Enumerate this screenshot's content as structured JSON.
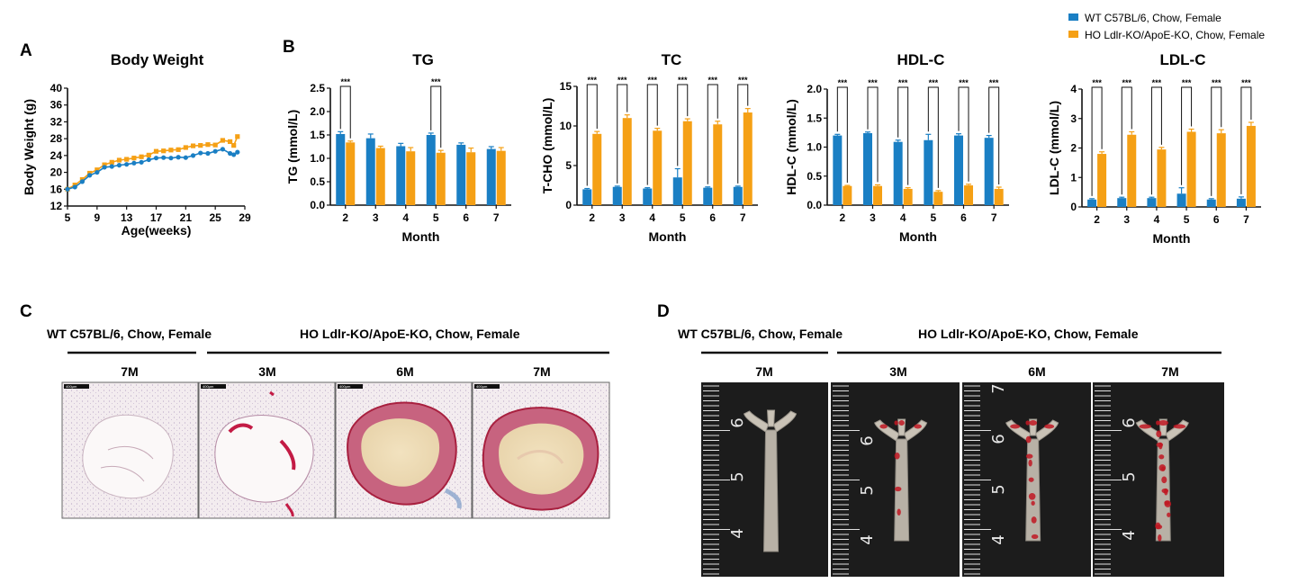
{
  "colors": {
    "wt": "#1a7fc4",
    "ho": "#f5a015"
  },
  "legend": {
    "wt": "WT C57BL/6, Chow, Female",
    "ho": "HO Ldlr-KO/ApoE-KO, Chow, Female"
  },
  "panels": {
    "a": "A",
    "b": "B",
    "c": "C",
    "d": "D"
  },
  "chart_data": [
    {
      "type": "line",
      "title": "Body Weight",
      "xlabel": "Age(weeks)",
      "ylabel": "Body Weight (g)",
      "xlim": [
        5,
        29
      ],
      "ylim": [
        12,
        40
      ],
      "xticks": [
        "5",
        "9",
        "13",
        "17",
        "21",
        "25",
        "29"
      ],
      "yticks": [
        "12",
        "16",
        "20",
        "24",
        "28",
        "32",
        "36",
        "40"
      ],
      "series": [
        {
          "name": "WT C57BL/6, Chow, Female",
          "x": [
            5,
            6,
            7,
            8,
            9,
            10,
            11,
            12,
            13,
            14,
            15,
            16,
            17,
            18,
            19,
            20,
            21,
            22,
            23,
            24,
            25,
            26,
            27,
            27.5,
            28
          ],
          "y": [
            16.0,
            16.5,
            17.8,
            19.3,
            20.0,
            21.2,
            21.4,
            21.7,
            21.9,
            22.2,
            22.4,
            23.0,
            23.4,
            23.5,
            23.4,
            23.6,
            23.5,
            24.0,
            24.6,
            24.5,
            25.0,
            25.5,
            24.5,
            24.2,
            24.8
          ]
        },
        {
          "name": "HO Ldlr-KO/ApoE-KO, Chow, Female",
          "x": [
            5,
            6,
            7,
            8,
            9,
            10,
            11,
            12,
            13,
            14,
            15,
            16,
            17,
            18,
            19,
            20,
            21,
            22,
            23,
            24,
            25,
            26,
            27,
            27.5,
            28
          ],
          "y": [
            16.0,
            17.0,
            18.3,
            19.8,
            20.6,
            21.8,
            22.4,
            22.9,
            23.1,
            23.4,
            23.7,
            24.1,
            25.0,
            25.1,
            25.3,
            25.4,
            25.9,
            26.3,
            26.4,
            26.6,
            26.5,
            27.6,
            27.3,
            26.4,
            28.5
          ]
        }
      ]
    },
    {
      "type": "bar",
      "title": "TG",
      "xlabel": "Month",
      "ylabel": "TG (mmol/L)",
      "categories": [
        "2",
        "3",
        "4",
        "5",
        "6",
        "7"
      ],
      "ylim": [
        0,
        2.5
      ],
      "yticks": [
        "0.0",
        "0.5",
        "1.0",
        "1.5",
        "2.0",
        "2.5"
      ],
      "series": [
        {
          "name": "WT C57BL/6, Chow, Female",
          "values": [
            1.52,
            1.43,
            1.26,
            1.5,
            1.29,
            1.2
          ],
          "errors": [
            0.05,
            0.09,
            0.06,
            0.04,
            0.04,
            0.05
          ]
        },
        {
          "name": "HO Ldlr-KO/ApoE-KO, Chow, Female",
          "values": [
            1.34,
            1.22,
            1.15,
            1.12,
            1.13,
            1.16
          ],
          "errors": [
            0.03,
            0.04,
            0.08,
            0.05,
            0.09,
            0.07
          ]
        }
      ],
      "significance": [
        "***",
        "",
        "",
        "***",
        "",
        ""
      ]
    },
    {
      "type": "bar",
      "title": "TC",
      "xlabel": "Month",
      "ylabel": "T-CHO (mmol/L)",
      "categories": [
        "2",
        "3",
        "4",
        "5",
        "6",
        "7"
      ],
      "ylim": [
        0,
        15
      ],
      "yticks": [
        "0",
        "5",
        "10",
        "15"
      ],
      "series": [
        {
          "name": "WT C57BL/6, Chow, Female",
          "values": [
            2.0,
            2.3,
            2.1,
            3.5,
            2.2,
            2.3
          ],
          "errors": [
            0.1,
            0.1,
            0.1,
            1.1,
            0.1,
            0.1
          ]
        },
        {
          "name": "HO Ldlr-KO/ApoE-KO, Chow, Female",
          "values": [
            9.0,
            11.0,
            9.4,
            10.6,
            10.2,
            11.7
          ],
          "errors": [
            0.3,
            0.4,
            0.3,
            0.3,
            0.4,
            0.5
          ]
        }
      ],
      "significance": [
        "***",
        "***",
        "***",
        "***",
        "***",
        "***"
      ]
    },
    {
      "type": "bar",
      "title": "HDL-C",
      "xlabel": "Month",
      "ylabel": "HDL-C (mmol/L)",
      "categories": [
        "2",
        "3",
        "4",
        "5",
        "6",
        "7"
      ],
      "ylim": [
        0,
        2.0
      ],
      "yticks": [
        "0.0",
        "0.5",
        "1.0",
        "1.5",
        "2.0"
      ],
      "series": [
        {
          "name": "WT C57BL/6, Chow, Female",
          "values": [
            1.2,
            1.24,
            1.09,
            1.12,
            1.2,
            1.16
          ],
          "errors": [
            0.02,
            0.02,
            0.03,
            0.1,
            0.03,
            0.04
          ]
        },
        {
          "name": "HO Ldlr-KO/ApoE-KO, Chow, Female",
          "values": [
            0.33,
            0.33,
            0.28,
            0.23,
            0.34,
            0.28
          ],
          "errors": [
            0.01,
            0.02,
            0.02,
            0.02,
            0.02,
            0.03
          ]
        }
      ],
      "significance": [
        "***",
        "***",
        "***",
        "***",
        "***",
        "***"
      ]
    },
    {
      "type": "bar",
      "title": "LDL-C",
      "xlabel": "Month",
      "ylabel": "LDL-C (mmol/L)",
      "categories": [
        "2",
        "3",
        "4",
        "5",
        "6",
        "7"
      ],
      "ylim": [
        0,
        4
      ],
      "yticks": [
        "0",
        "1",
        "2",
        "3",
        "4"
      ],
      "series": [
        {
          "name": "WT C57BL/6, Chow, Female",
          "values": [
            0.25,
            0.3,
            0.3,
            0.45,
            0.25,
            0.28
          ],
          "errors": [
            0.03,
            0.03,
            0.03,
            0.2,
            0.03,
            0.06
          ]
        },
        {
          "name": "HO Ldlr-KO/ApoE-KO, Chow, Female",
          "values": [
            1.8,
            2.45,
            1.95,
            2.55,
            2.5,
            2.75
          ],
          "errors": [
            0.07,
            0.1,
            0.07,
            0.09,
            0.12,
            0.12
          ]
        }
      ],
      "significance": [
        "***",
        "***",
        "***",
        "***",
        "***",
        "***"
      ]
    }
  ],
  "panel_c": {
    "group_wt": "WT C57BL/6, Chow, Female",
    "group_ho": "HO Ldlr-KO/ApoE-KO, Chow, Female",
    "columns": [
      "7M",
      "3M",
      "6M",
      "7M"
    ],
    "scale_bar": "400μm"
  },
  "panel_d": {
    "group_wt": "WT C57BL/6, Chow, Female",
    "group_ho": "HO Ldlr-KO/ApoE-KO, Chow, Female",
    "columns": [
      "7M",
      "3M",
      "6M",
      "7M"
    ],
    "ruler_numbers": [
      [
        "6",
        "5",
        "4"
      ],
      [
        "6",
        "5",
        "4"
      ],
      [
        "7",
        "6",
        "5",
        "4"
      ],
      [
        "6",
        "5",
        "4"
      ]
    ]
  }
}
